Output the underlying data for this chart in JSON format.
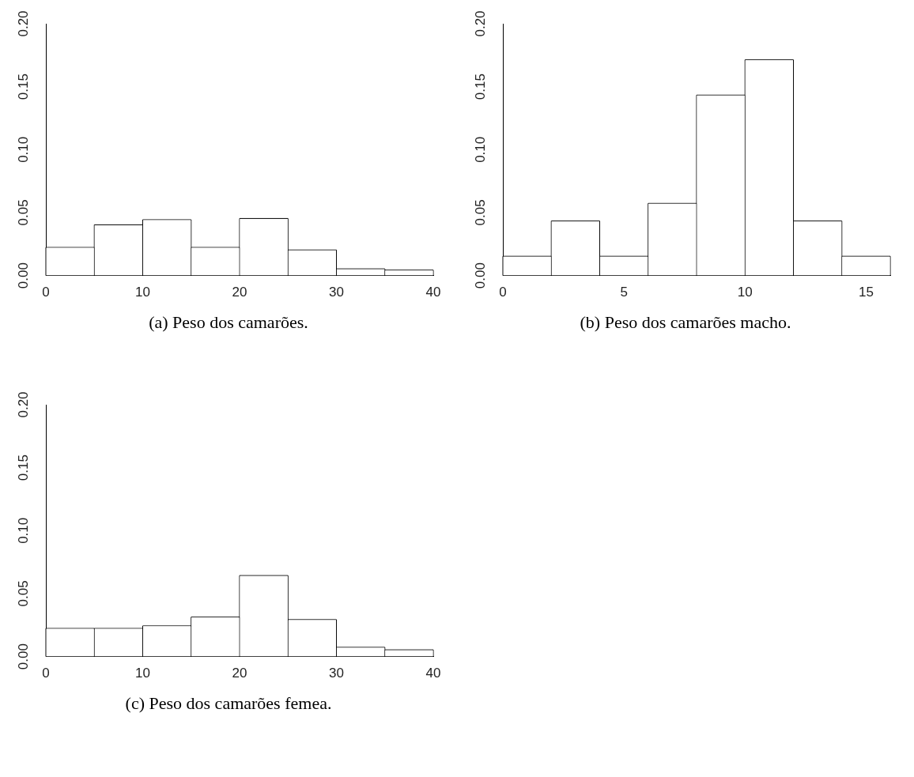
{
  "chart_data": [
    {
      "type": "histogram",
      "title": "(a) Peso dos camarões.",
      "bins": [
        0,
        5,
        10,
        15,
        20,
        25,
        30,
        35,
        40
      ],
      "values": [
        0.022,
        0.04,
        0.044,
        0.022,
        0.045,
        0.02,
        0.005,
        0.004
      ],
      "color": "#ffffff",
      "xlim": [
        0,
        40
      ],
      "xticks": [
        0,
        10,
        20,
        30,
        40
      ],
      "ylim": [
        0,
        0.2
      ],
      "yticks": [
        {
          "value": 0,
          "label": "0.00"
        },
        {
          "value": 0.05,
          "label": "0.05"
        },
        {
          "value": 0.1,
          "label": "0.10"
        },
        {
          "value": 0.15,
          "label": "0.15"
        },
        {
          "value": 0.2,
          "label": "0.20"
        }
      ],
      "grid": false,
      "legend": false
    },
    {
      "type": "histogram",
      "title": "(b) Peso dos camarões macho.",
      "bins": [
        0,
        2,
        4,
        6,
        8,
        10,
        12,
        14,
        16
      ],
      "values": [
        0.015,
        0.043,
        0.015,
        0.057,
        0.143,
        0.171,
        0.043,
        0.015
      ],
      "color": "#ffffff",
      "xlim": [
        0,
        16
      ],
      "xticks": [
        0,
        5,
        10,
        15
      ],
      "ylim": [
        0,
        0.2
      ],
      "yticks": [
        {
          "value": 0,
          "label": "0.00"
        },
        {
          "value": 0.05,
          "label": "0.05"
        },
        {
          "value": 0.1,
          "label": "0.10"
        },
        {
          "value": 0.15,
          "label": "0.15"
        },
        {
          "value": 0.2,
          "label": "0.20"
        }
      ],
      "grid": false,
      "legend": false
    },
    {
      "type": "histogram",
      "title": "(c) Peso dos camarões femea.",
      "bins": [
        0,
        5,
        10,
        15,
        20,
        25,
        30,
        35,
        40
      ],
      "values": [
        0.022,
        0.022,
        0.024,
        0.031,
        0.064,
        0.029,
        0.007,
        0.005
      ],
      "color": "#ffffff",
      "xlim": [
        0,
        40
      ],
      "xticks": [
        0,
        10,
        20,
        30,
        40
      ],
      "ylim": [
        0,
        0.2
      ],
      "yticks": [
        {
          "value": 0,
          "label": "0.00"
        },
        {
          "value": 0.05,
          "label": "0.05"
        },
        {
          "value": 0.1,
          "label": "0.10"
        },
        {
          "value": 0.15,
          "label": "0.15"
        },
        {
          "value": 0.2,
          "label": "0.20"
        }
      ],
      "grid": false,
      "legend": false
    }
  ]
}
